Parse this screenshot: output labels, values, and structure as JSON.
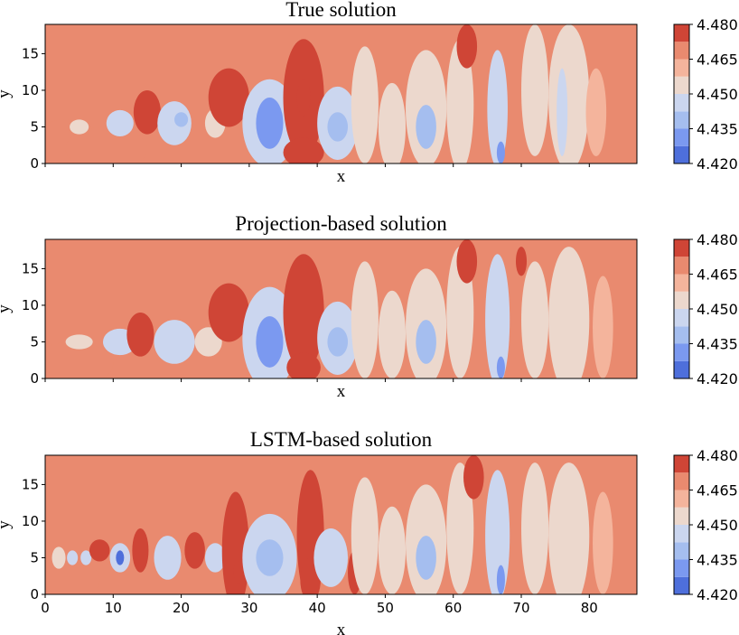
{
  "chart_data": [
    {
      "type": "heatmap",
      "title": "True solution",
      "xlabel": "x",
      "ylabel": "y",
      "xlim": [
        0,
        87
      ],
      "ylim": [
        0,
        19
      ],
      "xticks": [
        0,
        10,
        20,
        30,
        40,
        50,
        60,
        70,
        80
      ],
      "show_xtick_labels": false,
      "yticks": [
        0,
        5,
        10,
        15
      ],
      "ytick_labels": [
        "0",
        "5",
        "10",
        "15"
      ],
      "colorbar": {
        "levels": [
          4.42,
          4.4275,
          4.435,
          4.4425,
          4.45,
          4.4575,
          4.465,
          4.4725,
          4.48
        ],
        "tick_values": [
          4.42,
          4.435,
          4.45,
          4.465,
          4.48
        ],
        "tick_labels": [
          "4.420",
          "4.435",
          "4.450",
          "4.465",
          "4.480"
        ]
      },
      "background_value": 4.468,
      "features": [
        {
          "x": 3,
          "y": 3,
          "rx": 5,
          "ry": 3,
          "v": 4.472
        },
        {
          "x": 9,
          "y": 2,
          "rx": 6,
          "ry": 3,
          "v": 4.471
        },
        {
          "x": 5,
          "y": 5,
          "rx": 1.4,
          "ry": 1,
          "v": 4.452
        },
        {
          "x": 11,
          "y": 5.5,
          "rx": 2,
          "ry": 1.8,
          "v": 4.446
        },
        {
          "x": 15,
          "y": 7,
          "rx": 2,
          "ry": 3,
          "v": 4.473
        },
        {
          "x": 19,
          "y": 5.5,
          "rx": 2.5,
          "ry": 3,
          "v": 4.445
        },
        {
          "x": 20,
          "y": 6,
          "rx": 1,
          "ry": 1,
          "v": 4.437
        },
        {
          "x": 25,
          "y": 5.5,
          "rx": 1.5,
          "ry": 2,
          "v": 4.452
        },
        {
          "x": 27,
          "y": 9,
          "rx": 3,
          "ry": 4,
          "v": 4.474
        },
        {
          "x": 33,
          "y": 5.5,
          "rx": 4,
          "ry": 6,
          "v": 4.448
        },
        {
          "x": 33,
          "y": 5.5,
          "rx": 2,
          "ry": 3.5,
          "v": 4.431
        },
        {
          "x": 38,
          "y": 9,
          "rx": 3,
          "ry": 8,
          "v": 4.473
        },
        {
          "x": 38,
          "y": 9,
          "rx": 1,
          "ry": 2.5,
          "v": 4.48
        },
        {
          "x": 38,
          "y": 1.5,
          "rx": 3,
          "ry": 2,
          "v": 4.478
        },
        {
          "x": 43,
          "y": 5.5,
          "rx": 3,
          "ry": 5,
          "v": 4.448
        },
        {
          "x": 43,
          "y": 5,
          "rx": 1.5,
          "ry": 2,
          "v": 4.44
        },
        {
          "x": 47,
          "y": 8,
          "rx": 2,
          "ry": 8,
          "v": 4.455
        },
        {
          "x": 51,
          "y": 5,
          "rx": 2,
          "ry": 6,
          "v": 4.45
        },
        {
          "x": 56,
          "y": 7.5,
          "rx": 3,
          "ry": 8,
          "v": 4.45
        },
        {
          "x": 56,
          "y": 5,
          "rx": 1.5,
          "ry": 3,
          "v": 4.438
        },
        {
          "x": 61,
          "y": 8,
          "rx": 2,
          "ry": 9,
          "v": 4.456
        },
        {
          "x": 62,
          "y": 16,
          "rx": 1.5,
          "ry": 3,
          "v": 4.474
        },
        {
          "x": 66.5,
          "y": 7.5,
          "rx": 1.5,
          "ry": 8,
          "v": 4.446
        },
        {
          "x": 67,
          "y": 1.5,
          "rx": 0.6,
          "ry": 1.5,
          "v": 4.428
        },
        {
          "x": 72,
          "y": 10,
          "rx": 2,
          "ry": 9,
          "v": 4.457
        },
        {
          "x": 77,
          "y": 9,
          "rx": 3,
          "ry": 10,
          "v": 4.454
        },
        {
          "x": 76,
          "y": 7,
          "rx": 0.8,
          "ry": 6,
          "v": 4.444
        },
        {
          "x": 81,
          "y": 7,
          "rx": 1.5,
          "ry": 6,
          "v": 4.458
        }
      ]
    },
    {
      "type": "heatmap",
      "title": "Projection-based solution",
      "xlabel": "x",
      "ylabel": "y",
      "xlim": [
        0,
        87
      ],
      "ylim": [
        0,
        19
      ],
      "xticks": [
        0,
        10,
        20,
        30,
        40,
        50,
        60,
        70,
        80
      ],
      "show_xtick_labels": false,
      "yticks": [
        0,
        5,
        10,
        15
      ],
      "ytick_labels": [
        "0",
        "5",
        "10",
        "15"
      ],
      "colorbar": {
        "levels": [
          4.42,
          4.4275,
          4.435,
          4.4425,
          4.45,
          4.4575,
          4.465,
          4.4725,
          4.48
        ],
        "tick_values": [
          4.42,
          4.435,
          4.45,
          4.465,
          4.48
        ],
        "tick_labels": [
          "4.420",
          "4.435",
          "4.450",
          "4.465",
          "4.480"
        ]
      },
      "background_value": 4.468,
      "features": [
        {
          "x": 4,
          "y": 2,
          "rx": 6,
          "ry": 3,
          "v": 4.472
        },
        {
          "x": 5,
          "y": 5,
          "rx": 2,
          "ry": 1,
          "v": 4.452
        },
        {
          "x": 11,
          "y": 5,
          "rx": 2.5,
          "ry": 1.8,
          "v": 4.445
        },
        {
          "x": 14,
          "y": 6,
          "rx": 2,
          "ry": 3,
          "v": 4.473
        },
        {
          "x": 19,
          "y": 5,
          "rx": 3,
          "ry": 3,
          "v": 4.448
        },
        {
          "x": 24,
          "y": 5,
          "rx": 2,
          "ry": 2,
          "v": 4.452
        },
        {
          "x": 27,
          "y": 9,
          "rx": 3,
          "ry": 4,
          "v": 4.474
        },
        {
          "x": 33,
          "y": 5.5,
          "rx": 4,
          "ry": 7,
          "v": 4.448
        },
        {
          "x": 33,
          "y": 5,
          "rx": 2,
          "ry": 3.5,
          "v": 4.434
        },
        {
          "x": 38,
          "y": 9,
          "rx": 3,
          "ry": 8,
          "v": 4.473
        },
        {
          "x": 38,
          "y": 1.5,
          "rx": 2.5,
          "ry": 2,
          "v": 4.479
        },
        {
          "x": 43,
          "y": 5.5,
          "rx": 3,
          "ry": 5,
          "v": 4.448
        },
        {
          "x": 43,
          "y": 5,
          "rx": 1.5,
          "ry": 2,
          "v": 4.44
        },
        {
          "x": 47,
          "y": 8,
          "rx": 2,
          "ry": 8,
          "v": 4.455
        },
        {
          "x": 51,
          "y": 6,
          "rx": 2,
          "ry": 6,
          "v": 4.45
        },
        {
          "x": 56,
          "y": 7,
          "rx": 3,
          "ry": 8,
          "v": 4.45
        },
        {
          "x": 56,
          "y": 5,
          "rx": 1.5,
          "ry": 3,
          "v": 4.438
        },
        {
          "x": 61,
          "y": 9,
          "rx": 2,
          "ry": 9,
          "v": 4.456
        },
        {
          "x": 62,
          "y": 16,
          "rx": 1.5,
          "ry": 3,
          "v": 4.474
        },
        {
          "x": 66.5,
          "y": 8,
          "rx": 1.8,
          "ry": 9,
          "v": 4.446
        },
        {
          "x": 67,
          "y": 1.5,
          "rx": 0.6,
          "ry": 1.5,
          "v": 4.428
        },
        {
          "x": 70,
          "y": 16,
          "rx": 0.8,
          "ry": 2,
          "v": 4.474
        },
        {
          "x": 72,
          "y": 8,
          "rx": 2,
          "ry": 8,
          "v": 4.457
        },
        {
          "x": 77,
          "y": 8,
          "rx": 3,
          "ry": 10,
          "v": 4.454
        },
        {
          "x": 82,
          "y": 7,
          "rx": 1.5,
          "ry": 7,
          "v": 4.458
        }
      ]
    },
    {
      "type": "heatmap",
      "title": "LSTM-based solution",
      "xlabel": "x",
      "ylabel": "y",
      "xlim": [
        0,
        87
      ],
      "ylim": [
        0,
        19
      ],
      "xticks": [
        0,
        10,
        20,
        30,
        40,
        50,
        60,
        70,
        80
      ],
      "show_xtick_labels": true,
      "xtick_labels": [
        "0",
        "10",
        "20",
        "30",
        "40",
        "50",
        "60",
        "70",
        "80"
      ],
      "yticks": [
        0,
        5,
        10,
        15
      ],
      "ytick_labels": [
        "0",
        "5",
        "10",
        "15"
      ],
      "colorbar": {
        "levels": [
          4.42,
          4.4275,
          4.435,
          4.4425,
          4.45,
          4.4575,
          4.465,
          4.4725,
          4.48
        ],
        "tick_values": [
          4.42,
          4.435,
          4.45,
          4.465,
          4.48
        ],
        "tick_labels": [
          "4.420",
          "4.435",
          "4.450",
          "4.465",
          "4.480"
        ]
      },
      "background_value": 4.468,
      "features": [
        {
          "x": 3,
          "y": 2,
          "rx": 5,
          "ry": 3,
          "v": 4.472
        },
        {
          "x": 2,
          "y": 5,
          "rx": 1,
          "ry": 1.5,
          "v": 4.452
        },
        {
          "x": 4,
          "y": 5,
          "rx": 0.8,
          "ry": 1,
          "v": 4.446
        },
        {
          "x": 6,
          "y": 5,
          "rx": 0.8,
          "ry": 1,
          "v": 4.446
        },
        {
          "x": 8,
          "y": 6,
          "rx": 1.5,
          "ry": 1.5,
          "v": 4.474
        },
        {
          "x": 11,
          "y": 5,
          "rx": 1.5,
          "ry": 2,
          "v": 4.443
        },
        {
          "x": 11,
          "y": 5,
          "rx": 0.6,
          "ry": 1,
          "v": 4.426
        },
        {
          "x": 14,
          "y": 6,
          "rx": 1.2,
          "ry": 3,
          "v": 4.476
        },
        {
          "x": 18,
          "y": 5,
          "rx": 2,
          "ry": 3,
          "v": 4.448
        },
        {
          "x": 22,
          "y": 6,
          "rx": 1.5,
          "ry": 2.5,
          "v": 4.474
        },
        {
          "x": 25,
          "y": 5,
          "rx": 1.5,
          "ry": 2,
          "v": 4.448
        },
        {
          "x": 28,
          "y": 6,
          "rx": 2,
          "ry": 8,
          "v": 4.474
        },
        {
          "x": 28.5,
          "y": 3,
          "rx": 0.8,
          "ry": 1.5,
          "v": 4.478
        },
        {
          "x": 33,
          "y": 5,
          "rx": 4,
          "ry": 6,
          "v": 4.448
        },
        {
          "x": 33,
          "y": 5,
          "rx": 2,
          "ry": 2.5,
          "v": 4.438
        },
        {
          "x": 39,
          "y": 8,
          "rx": 2,
          "ry": 9,
          "v": 4.473
        },
        {
          "x": 39,
          "y": 2,
          "rx": 1.5,
          "ry": 3,
          "v": 4.479
        },
        {
          "x": 42,
          "y": 5,
          "rx": 2.5,
          "ry": 4,
          "v": 4.448
        },
        {
          "x": 45.5,
          "y": 3,
          "rx": 1,
          "ry": 3,
          "v": 4.476
        },
        {
          "x": 47,
          "y": 8,
          "rx": 2,
          "ry": 8,
          "v": 4.455
        },
        {
          "x": 51,
          "y": 6,
          "rx": 2,
          "ry": 6,
          "v": 4.45
        },
        {
          "x": 56,
          "y": 7,
          "rx": 3,
          "ry": 8,
          "v": 4.45
        },
        {
          "x": 56,
          "y": 5,
          "rx": 1.5,
          "ry": 3,
          "v": 4.44
        },
        {
          "x": 61,
          "y": 9,
          "rx": 2,
          "ry": 9,
          "v": 4.456
        },
        {
          "x": 63,
          "y": 16,
          "rx": 1.5,
          "ry": 3,
          "v": 4.474
        },
        {
          "x": 66.5,
          "y": 8,
          "rx": 1.8,
          "ry": 9,
          "v": 4.446
        },
        {
          "x": 67,
          "y": 2,
          "rx": 0.6,
          "ry": 2,
          "v": 4.428
        },
        {
          "x": 72,
          "y": 9,
          "rx": 2,
          "ry": 9,
          "v": 4.457
        },
        {
          "x": 77,
          "y": 8,
          "rx": 3,
          "ry": 10,
          "v": 4.454
        },
        {
          "x": 82,
          "y": 7,
          "rx": 1.5,
          "ry": 7,
          "v": 4.458
        }
      ]
    }
  ]
}
